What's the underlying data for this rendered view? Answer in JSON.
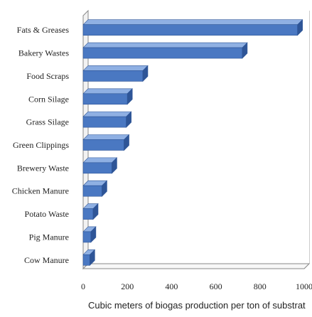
{
  "chart_data": {
    "type": "bar",
    "orientation": "horizontal",
    "style": "3d",
    "categories": [
      "Fats & Greases",
      "Bakery Wastes",
      "Food Scraps",
      "Corn Silage",
      "Grass Silage",
      "Green Clippings",
      "Brewery Waste",
      "Chicken Manure",
      "Potato Waste",
      "Pig Manure",
      "Cow Manure"
    ],
    "values": [
      970,
      720,
      270,
      200,
      195,
      185,
      130,
      85,
      45,
      35,
      30
    ],
    "xlabel": "Cubic meters of biogas production per ton of substrat",
    "ylabel": "",
    "title": "",
    "xlim": [
      0,
      1000
    ],
    "xticks": [
      "0",
      "200",
      "400",
      "600",
      "800",
      "1000"
    ],
    "grid": true,
    "legend": "none",
    "bar_color": "#4a78c2",
    "bar_dark_color": "#2e5597",
    "bar_light_color": "#8fb0e3"
  }
}
